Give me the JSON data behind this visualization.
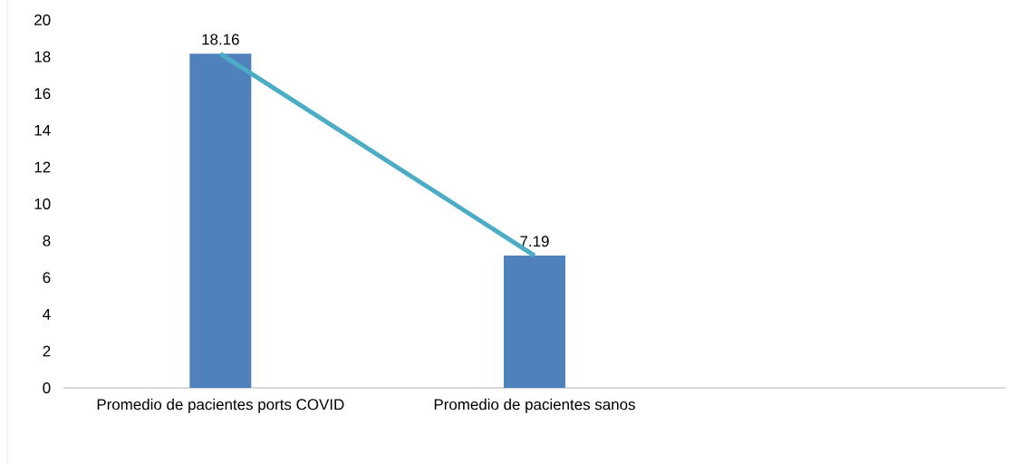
{
  "chart_data": {
    "type": "bar",
    "categories": [
      "Promedio de pacientes ports COVID",
      "Promedio de pacientes sanos",
      null
    ],
    "series": [
      {
        "color": "#4f81bd",
        "values": [
          18.16,
          7.19,
          null
        ],
        "value_labels": [
          "18.16",
          "7.19",
          null
        ]
      },
      {
        "type": "line",
        "color": "#4bacc6",
        "values": [
          18.16,
          7.19,
          null
        ],
        "marker": "none",
        "line_style": "solid"
      }
    ],
    "ylim": [
      0,
      20
    ],
    "yticks": [
      0,
      2,
      4,
      6,
      8,
      10,
      12,
      14,
      16,
      18,
      20
    ],
    "grid": false
  }
}
